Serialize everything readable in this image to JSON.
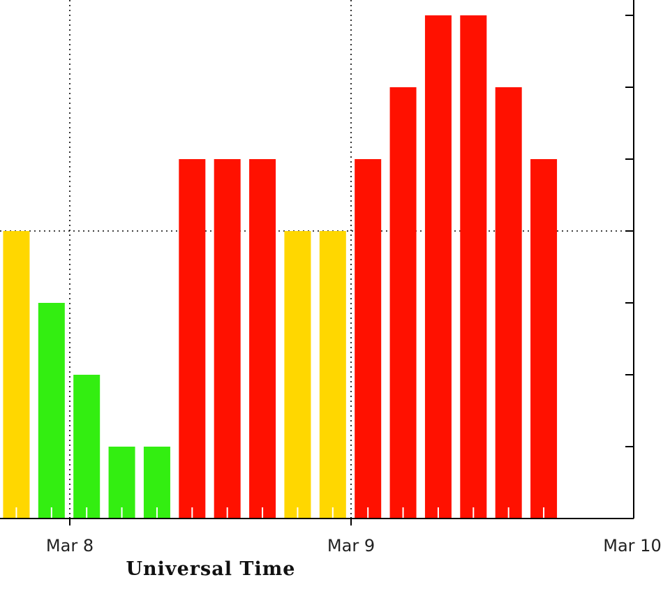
{
  "chart_data": {
    "type": "bar",
    "xlabel": "Universal Time",
    "ylabel": "",
    "x_ticks": [
      "Mar 8",
      "Mar 9",
      "Mar 10"
    ],
    "x_range": [
      "Mar 7 17:00",
      "Mar 10 00:00"
    ],
    "ylim": [
      0,
      9
    ],
    "y_grid_values": [
      4,
      8
    ],
    "grid": "dotted",
    "bar_interval_hours": 3,
    "bar_times": [
      "Mar 7 18:00",
      "Mar 7 21:00",
      "Mar 8 00:00",
      "Mar 8 03:00",
      "Mar 8 06:00",
      "Mar 8 09:00",
      "Mar 8 12:00",
      "Mar 8 15:00",
      "Mar 8 18:00",
      "Mar 8 21:00",
      "Mar 9 00:00",
      "Mar 9 03:00",
      "Mar 9 06:00",
      "Mar 9 09:00",
      "Mar 9 12:00",
      "Mar 9 15:00"
    ],
    "values": [
      4,
      3,
      2,
      1,
      1,
      5,
      5,
      5,
      4,
      4,
      5,
      6,
      7,
      7,
      6,
      5
    ],
    "colors": [
      "#ffd700",
      "#33ee11",
      "#33ee11",
      "#33ee11",
      "#33ee11",
      "#ff1100",
      "#ff1100",
      "#ff1100",
      "#ffd700",
      "#ffd700",
      "#ff1100",
      "#ff1100",
      "#ff1100",
      "#ff1100",
      "#ff1100",
      "#ff1100"
    ]
  }
}
